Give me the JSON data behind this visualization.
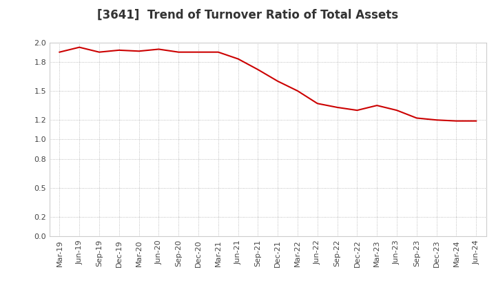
{
  "title": "[3641]  Trend of Turnover Ratio of Total Assets",
  "line_color": "#cc0000",
  "background_color": "#ffffff",
  "plot_bg_color": "#ffffff",
  "grid_color": "#aaaaaa",
  "ylim": [
    0.0,
    2.0
  ],
  "yticks": [
    0.0,
    0.2,
    0.5,
    0.8,
    1.0,
    1.2,
    1.5,
    1.8,
    2.0
  ],
  "labels": [
    "Mar-19",
    "Jun-19",
    "Sep-19",
    "Dec-19",
    "Mar-20",
    "Jun-20",
    "Sep-20",
    "Dec-20",
    "Mar-21",
    "Jun-21",
    "Sep-21",
    "Dec-21",
    "Mar-22",
    "Jun-22",
    "Sep-22",
    "Dec-22",
    "Mar-23",
    "Jun-23",
    "Sep-23",
    "Dec-23",
    "Mar-24",
    "Jun-24"
  ],
  "values": [
    1.9,
    1.95,
    1.9,
    1.92,
    1.91,
    1.93,
    1.9,
    1.9,
    1.9,
    1.83,
    1.72,
    1.6,
    1.5,
    1.37,
    1.33,
    1.3,
    1.35,
    1.3,
    1.22,
    1.2,
    1.19,
    1.19
  ],
  "title_fontsize": 12,
  "title_color": "#333333",
  "tick_label_color": "#444444",
  "tick_fontsize": 8,
  "linewidth": 1.5
}
